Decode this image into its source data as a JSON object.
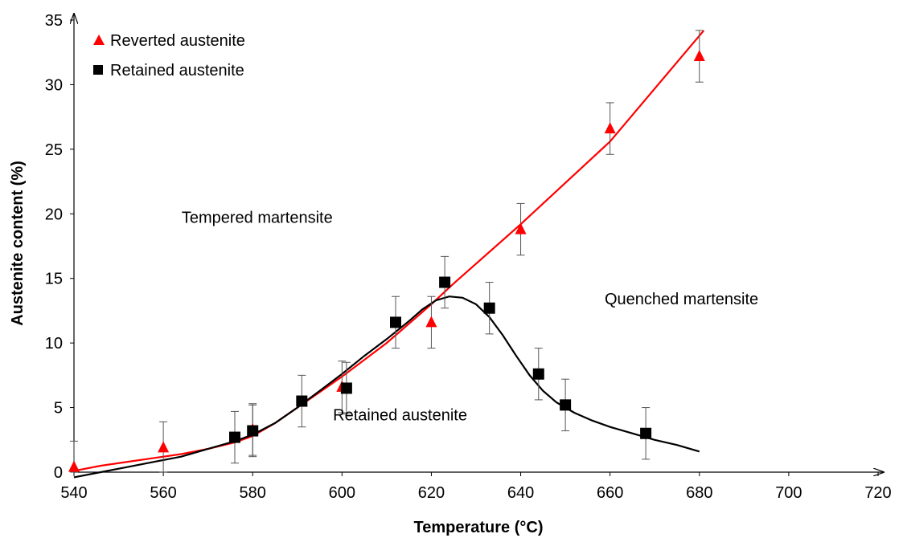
{
  "chart_data": {
    "type": "scatter",
    "title": "",
    "xlabel": "Temperature (°C)",
    "ylabel": "Austenite content (%)",
    "xlim": [
      540,
      720
    ],
    "ylim": [
      0,
      35
    ],
    "x_ticks": [
      "540",
      "560",
      "580",
      "600",
      "620",
      "640",
      "660",
      "680",
      "700",
      "720"
    ],
    "y_ticks": [
      "0",
      "5",
      "10",
      "15",
      "20",
      "25",
      "30",
      "35"
    ],
    "grid": false,
    "legend_position": "top-left",
    "series": [
      {
        "name": "Reverted austenite",
        "marker": "triangle",
        "color": "#ff0000",
        "points": [
          {
            "x": 540,
            "y": 0.4,
            "err": 2.0
          },
          {
            "x": 560,
            "y": 1.9,
            "err": 2.0
          },
          {
            "x": 580,
            "y": 3.3,
            "err": 2.0
          },
          {
            "x": 600,
            "y": 6.6,
            "err": 2.0
          },
          {
            "x": 620,
            "y": 11.6,
            "err": 2.0
          },
          {
            "x": 640,
            "y": 18.8,
            "err": 2.0
          },
          {
            "x": 660,
            "y": 26.6,
            "err": 2.0
          },
          {
            "x": 680,
            "y": 32.2,
            "err": 2.0
          }
        ],
        "fit_line": [
          [
            540,
            0.1
          ],
          [
            546,
            0.5
          ],
          [
            552,
            0.8
          ],
          [
            558,
            1.1
          ],
          [
            564,
            1.4
          ],
          [
            570,
            1.8
          ],
          [
            576,
            2.3
          ],
          [
            580,
            2.8
          ],
          [
            585,
            3.8
          ],
          [
            590,
            5.0
          ],
          [
            595,
            6.2
          ],
          [
            600,
            7.4
          ],
          [
            605,
            8.7
          ],
          [
            610,
            10.0
          ],
          [
            615,
            11.5
          ],
          [
            620,
            13.0
          ],
          [
            625,
            14.6
          ],
          [
            640,
            19.2
          ],
          [
            660,
            25.6
          ],
          [
            681,
            34.2
          ]
        ]
      },
      {
        "name": "Retained austenite",
        "marker": "square",
        "color": "#000000",
        "points": [
          {
            "x": 576,
            "y": 2.7,
            "err": 2.0
          },
          {
            "x": 580,
            "y": 3.2,
            "err": 2.0
          },
          {
            "x": 591,
            "y": 5.5,
            "err": 2.0
          },
          {
            "x": 601,
            "y": 6.5,
            "err": 2.0
          },
          {
            "x": 612,
            "y": 11.6,
            "err": 2.0
          },
          {
            "x": 623,
            "y": 14.7,
            "err": 2.0
          },
          {
            "x": 633,
            "y": 12.7,
            "err": 2.0
          },
          {
            "x": 644,
            "y": 7.6,
            "err": 2.0
          },
          {
            "x": 650,
            "y": 5.2,
            "err": 2.0
          },
          {
            "x": 668,
            "y": 3.0,
            "err": 2.0
          }
        ],
        "fit_line": [
          [
            540,
            -0.4
          ],
          [
            546,
            0.0
          ],
          [
            552,
            0.4
          ],
          [
            558,
            0.8
          ],
          [
            564,
            1.2
          ],
          [
            570,
            1.8
          ],
          [
            576,
            2.4
          ],
          [
            580,
            2.9
          ],
          [
            585,
            3.8
          ],
          [
            590,
            5.0
          ],
          [
            595,
            6.3
          ],
          [
            600,
            7.6
          ],
          [
            605,
            9.0
          ],
          [
            610,
            10.3
          ],
          [
            615,
            11.7
          ],
          [
            618,
            12.6
          ],
          [
            621,
            13.3
          ],
          [
            624,
            13.6
          ],
          [
            627,
            13.5
          ],
          [
            630,
            13.0
          ],
          [
            633,
            12.0
          ],
          [
            636,
            10.6
          ],
          [
            639,
            9.0
          ],
          [
            642,
            7.5
          ],
          [
            645,
            6.3
          ],
          [
            648,
            5.4
          ],
          [
            652,
            4.6
          ],
          [
            656,
            4.0
          ],
          [
            660,
            3.5
          ],
          [
            665,
            3.0
          ],
          [
            670,
            2.5
          ],
          [
            675,
            2.1
          ],
          [
            680,
            1.6
          ]
        ]
      }
    ],
    "annotations": [
      {
        "text": "Tempered martensite",
        "x": 581,
        "y": 19.3
      },
      {
        "text": "Quenched martensite",
        "x": 676,
        "y": 13.0
      },
      {
        "text": "Retained austenite",
        "x": 613,
        "y": 4.0
      }
    ]
  }
}
